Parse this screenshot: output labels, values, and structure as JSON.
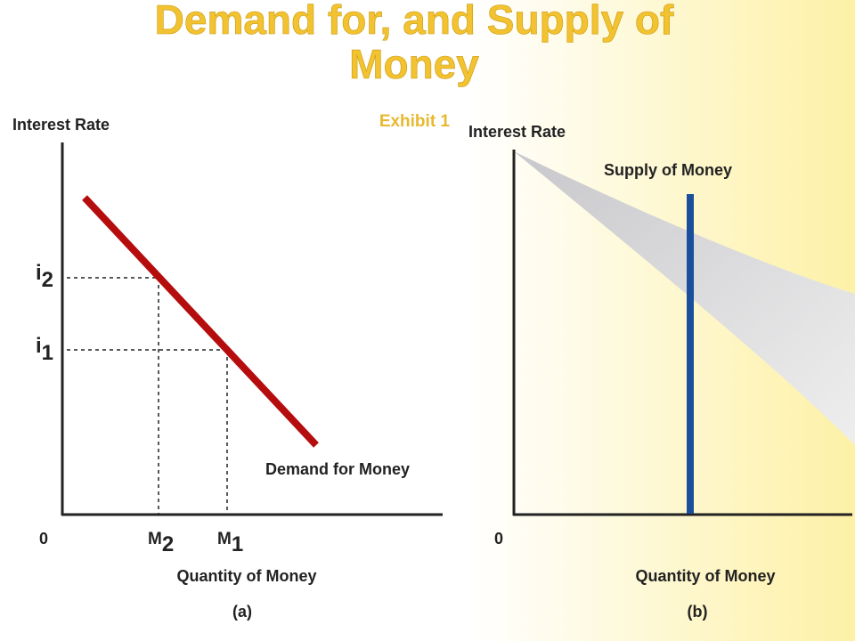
{
  "header": {
    "title": "Demand for, and Supply of Money",
    "subtitle": "Exhibit 1"
  },
  "panel_a": {
    "y_label": "Interest Rate",
    "origin": "0",
    "y_ticks": [
      {
        "base": "i",
        "sub": "2"
      },
      {
        "base": "i",
        "sub": "1"
      }
    ],
    "x_ticks": [
      {
        "base": "M",
        "sub": "2"
      },
      {
        "base": "M",
        "sub": "1"
      }
    ],
    "curve_label": "Demand for Money",
    "x_label": "Quantity of Money",
    "caption": "(a)"
  },
  "panel_b": {
    "y_label": "Interest Rate",
    "curve_label": "Supply of Money",
    "origin": "0",
    "x_label": "Quantity of Money",
    "caption": "(b)"
  }
}
